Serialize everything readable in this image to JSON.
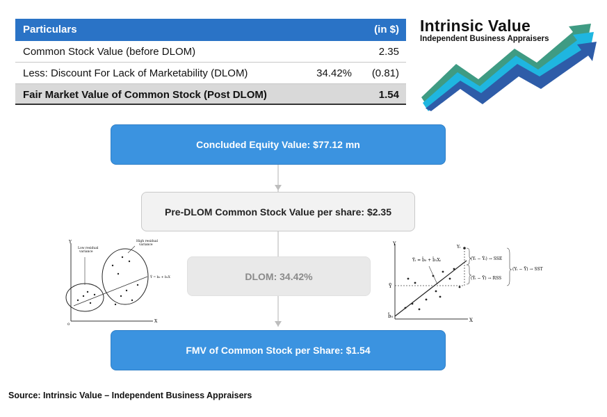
{
  "table": {
    "header": {
      "label": "Particulars",
      "unit": "(in $)"
    },
    "rows": [
      {
        "label": "Common Stock Value (before DLOM)",
        "pct": "",
        "value": "2.35"
      },
      {
        "label": "Less: Discount For Lack of Marketability (DLOM)",
        "pct": "34.42%",
        "value": "(0.81)"
      }
    ],
    "total": {
      "label": "Fair Market Value of Common Stock (Post DLOM)",
      "value": "1.54"
    }
  },
  "logo": {
    "title": "Intrinsic Value",
    "subtitle": "Independent Business Appraisers",
    "colors": [
      "#3f9b83",
      "#1fb6e0",
      "#2e5ca8"
    ]
  },
  "flow": {
    "equity": "Concluded Equity Value: $77.12 mn",
    "pre_dlom": "Pre-DLOM Common Stock Value per share: $2.35",
    "dlom": "DLOM: 34.42%",
    "fmv": "FMV of Common Stock per Share: $1.54"
  },
  "left_plot": {
    "y_axis": "Y",
    "x_axis": "X",
    "origin": "0",
    "low_label_1": "Low residual",
    "low_label_2": "variance",
    "high_label_1": "High residual",
    "high_label_2": "variance",
    "equation": "Ŷ = b₀ + b₁X"
  },
  "right_plot": {
    "y_axis": "Y",
    "x_axis": "X",
    "y_bar": "Ȳ",
    "intercept": "b̂₀",
    "yi": "Yᵢ",
    "equation": "Ŷᵢ = b̂₀ + b̂₁Xᵢ",
    "sse": "(Yᵢ − Ŷᵢ) → SSE",
    "rss": "(Ŷᵢ − Ȳ) → RSS",
    "sst": "(Yᵢ − Ȳ) → SST"
  },
  "source": "Source: Intrinsic Value – Independent Business Appraisers"
}
